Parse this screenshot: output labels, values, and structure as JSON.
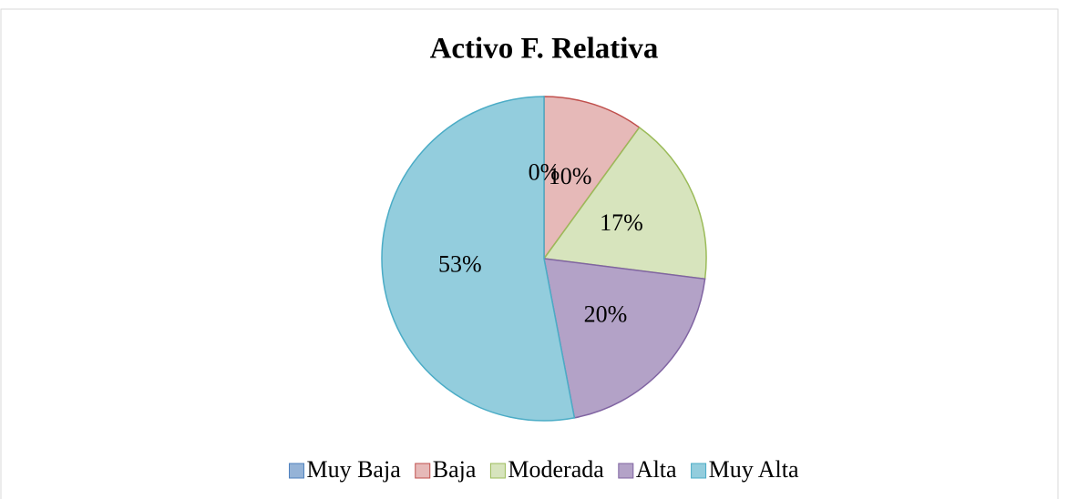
{
  "chart_data": {
    "type": "pie",
    "title": "Activo F. Relativa",
    "categories": [
      "Muy Baja",
      "Baja",
      "Moderada",
      "Alta",
      "Muy Alta"
    ],
    "values": [
      0,
      10,
      17,
      20,
      53
    ],
    "value_labels": [
      "0%",
      "10%",
      "17%",
      "20%",
      "53%"
    ],
    "colors": [
      "#95b3d7",
      "#e6b9b8",
      "#d7e4bd",
      "#b3a2c7",
      "#93cddd"
    ],
    "stroke_colors": [
      "#4f81bd",
      "#c0504d",
      "#9bbb59",
      "#8064a2",
      "#4bacc6"
    ],
    "legend": "bottom"
  }
}
